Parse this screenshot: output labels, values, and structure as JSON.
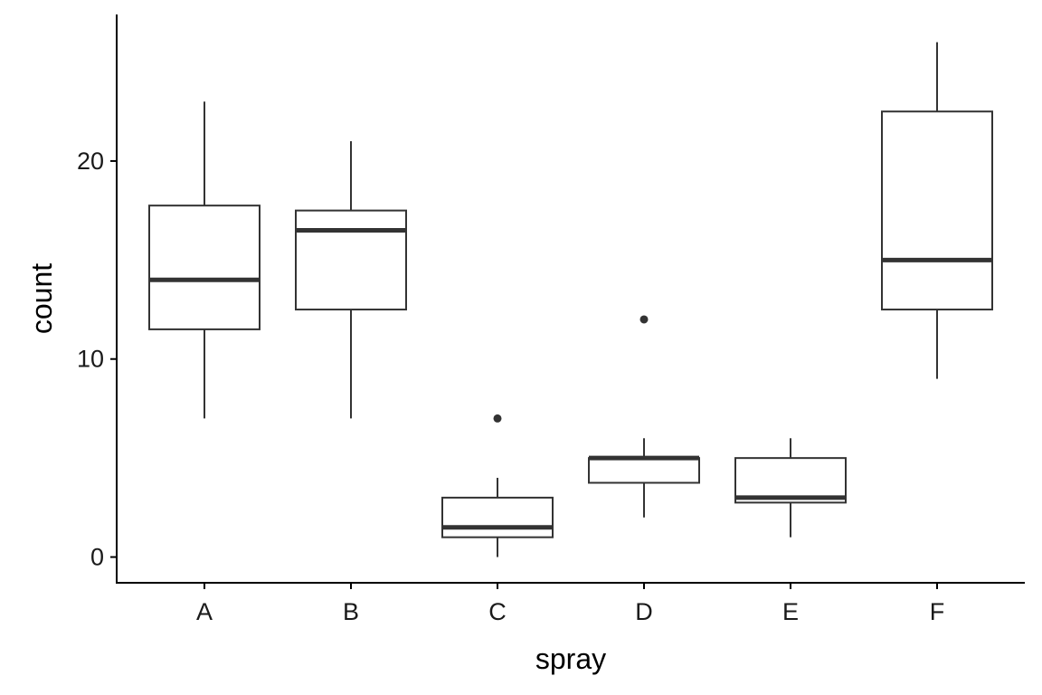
{
  "chart_data": {
    "type": "boxplot",
    "xlabel": "spray",
    "ylabel": "count",
    "categories": [
      "A",
      "B",
      "C",
      "D",
      "E",
      "F"
    ],
    "ylim": [
      -1.3,
      27.4
    ],
    "yticks": [
      0,
      10,
      20
    ],
    "grid": false,
    "legend": "none",
    "colors": {
      "box_outline": "#333333",
      "box_fill": "#ffffff",
      "axis": "#000000"
    },
    "boxes": [
      {
        "category": "A",
        "min": 7,
        "q1": 11.5,
        "median": 14,
        "q3": 17.75,
        "max": 23,
        "outliers": []
      },
      {
        "category": "B",
        "min": 7,
        "q1": 12.5,
        "median": 16.5,
        "q3": 17.5,
        "max": 21,
        "outliers": []
      },
      {
        "category": "C",
        "min": 0,
        "q1": 1,
        "median": 1.5,
        "q3": 3,
        "max": 4,
        "outliers": [
          7
        ]
      },
      {
        "category": "D",
        "min": 2,
        "q1": 3.75,
        "median": 5,
        "q3": 5,
        "max": 6,
        "outliers": [
          12
        ]
      },
      {
        "category": "E",
        "min": 1,
        "q1": 2.75,
        "median": 3,
        "q3": 5,
        "max": 6,
        "outliers": []
      },
      {
        "category": "F",
        "min": 9,
        "q1": 12.5,
        "median": 15,
        "q3": 22.5,
        "max": 26,
        "outliers": []
      }
    ]
  }
}
